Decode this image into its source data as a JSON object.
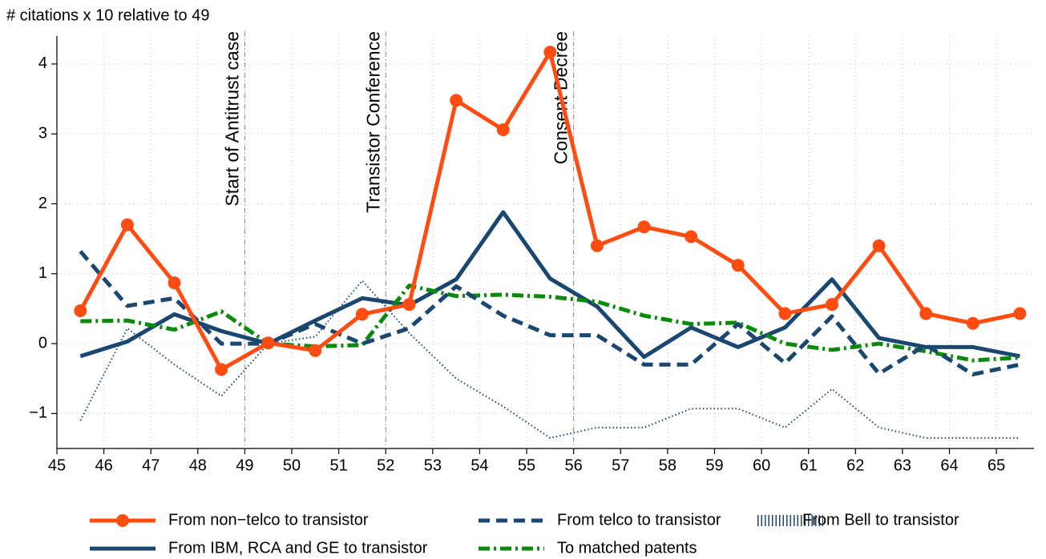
{
  "chart_data": {
    "type": "line",
    "title": "# citations  x 10 relative to 49",
    "x": [
      45.5,
      46.5,
      47.5,
      48.5,
      49.5,
      50.5,
      51.5,
      52.5,
      53.5,
      54.5,
      55.5,
      56.5,
      57.5,
      58.5,
      59.5,
      60.5,
      61.5,
      62.5,
      63.5,
      64.5,
      65.5
    ],
    "series": [
      {
        "name": "From non−telco to transistor",
        "color": "#ff4d12",
        "style": "solid",
        "marker": true,
        "values": [
          0.47,
          1.7,
          0.87,
          -0.37,
          0.01,
          -0.1,
          0.42,
          0.56,
          3.48,
          3.06,
          4.17,
          1.4,
          1.67,
          1.53,
          1.12,
          0.43,
          0.56,
          1.4,
          0.43,
          0.29,
          0.43
        ]
      },
      {
        "name": "From telco to transistor",
        "color": "#1a476f",
        "style": "dashed",
        "marker": false,
        "values": [
          1.32,
          0.54,
          0.65,
          0.0,
          0.0,
          0.28,
          0.0,
          0.22,
          0.82,
          0.4,
          0.12,
          0.12,
          -0.3,
          -0.3,
          0.28,
          -0.28,
          0.39,
          -0.43,
          -0.02,
          -0.44,
          -0.3
        ]
      },
      {
        "name": "From Bell to transistor",
        "color": "#1a476f",
        "style": "dotted",
        "marker": false,
        "values": [
          -1.1,
          0.22,
          -0.3,
          -0.75,
          0.0,
          0.1,
          0.9,
          0.15,
          -0.5,
          -0.9,
          -1.35,
          -1.2,
          -1.2,
          -0.93,
          -0.93,
          -1.2,
          -0.65,
          -1.2,
          -1.35,
          -1.35,
          -1.35
        ]
      },
      {
        "name": "From IBM, RCA and GE to transistor",
        "color": "#1a476f",
        "style": "solid",
        "marker": false,
        "values": [
          -0.18,
          0.03,
          0.42,
          0.18,
          0.0,
          0.33,
          0.65,
          0.55,
          0.92,
          1.88,
          0.93,
          0.53,
          -0.19,
          0.23,
          -0.05,
          0.23,
          0.92,
          0.08,
          -0.05,
          -0.05,
          -0.18
        ]
      },
      {
        "name": "To matched patents",
        "color": "#0a8a0a",
        "style": "dashdot",
        "marker": false,
        "values": [
          0.32,
          0.33,
          0.2,
          0.46,
          0.0,
          -0.04,
          -0.02,
          0.83,
          0.68,
          0.7,
          0.67,
          0.6,
          0.4,
          0.28,
          0.3,
          0.0,
          -0.09,
          0.0,
          -0.11,
          -0.24,
          -0.2
        ]
      }
    ],
    "annotations": [
      {
        "x": 49,
        "text": "Start of Antitrust case"
      },
      {
        "x": 52,
        "text": "Transistor Conference"
      },
      {
        "x": 56,
        "text": "Consent Decree"
      }
    ],
    "xlim": [
      45,
      65.8
    ],
    "xticks": [
      45,
      46,
      47,
      48,
      49,
      50,
      51,
      52,
      53,
      54,
      55,
      56,
      57,
      58,
      59,
      60,
      61,
      62,
      63,
      64,
      65
    ],
    "ylim": [
      -1.5,
      4.4
    ],
    "yticks": [
      {
        "value": -1,
        "label": "−1"
      },
      0,
      1,
      2,
      3,
      4
    ],
    "grid": true,
    "legend": "bottom"
  }
}
